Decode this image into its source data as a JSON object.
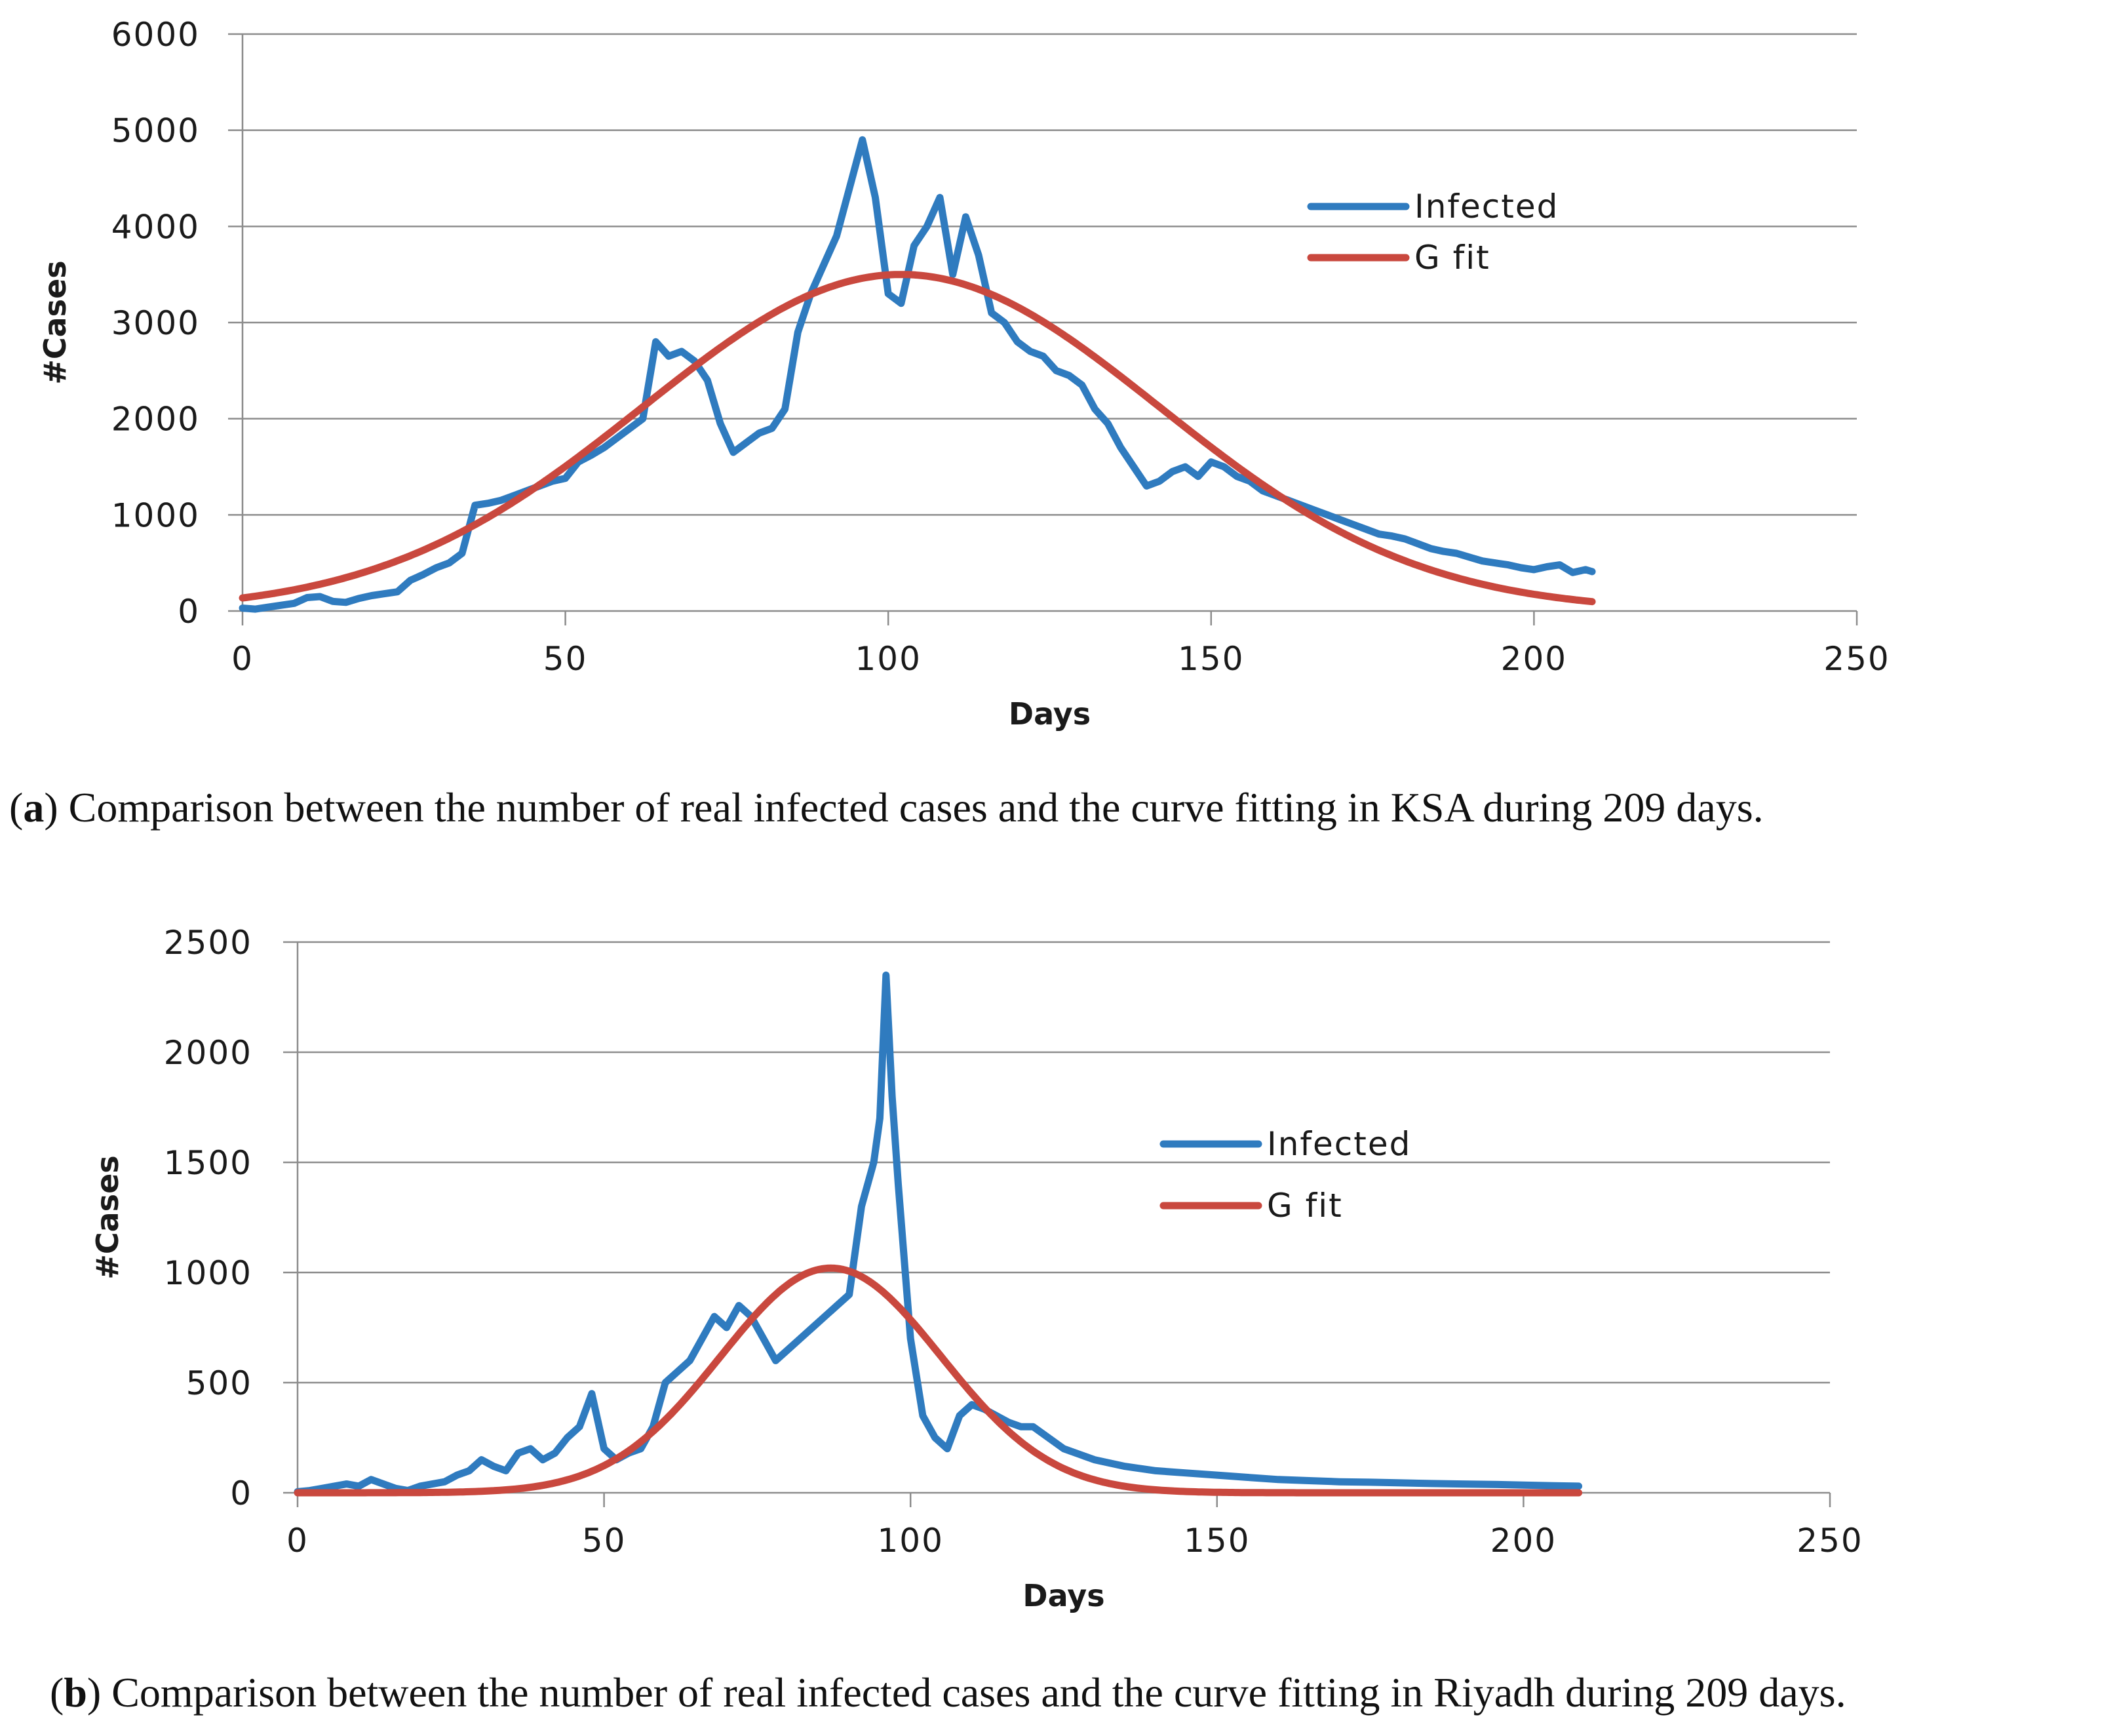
{
  "colors": {
    "infected": "#2f7bbf",
    "gfit": "#c9483e",
    "grid": "#8c8c8c",
    "text": "#1a1a1a"
  },
  "captions": {
    "a_label": "a",
    "a_text": "Comparison between the number of real infected cases and the curve fitting in KSA during 209 days.",
    "b_label": "b",
    "b_text": "Comparison between the number of real infected cases and the curve fitting in Riyadh during 209 days."
  },
  "chart_data": [
    {
      "id": "ksa",
      "type": "line",
      "title": "",
      "xlabel": "Days",
      "ylabel": "#Cases",
      "xlim": [
        0,
        250
      ],
      "ylim": [
        0,
        6000
      ],
      "xticks": [
        0,
        50,
        100,
        150,
        200,
        250
      ],
      "yticks": [
        0,
        1000,
        2000,
        3000,
        4000,
        5000,
        6000
      ],
      "grid": "horizontal",
      "legend_position": "right-upper",
      "series": [
        {
          "name": "Infected",
          "x": [
            0,
            2,
            4,
            6,
            8,
            10,
            12,
            14,
            16,
            18,
            20,
            22,
            24,
            26,
            28,
            30,
            32,
            34,
            35,
            36,
            38,
            40,
            42,
            44,
            46,
            48,
            50,
            52,
            54,
            56,
            58,
            60,
            62,
            64,
            66,
            68,
            70,
            72,
            74,
            76,
            78,
            80,
            82,
            84,
            86,
            88,
            90,
            92,
            94,
            96,
            98,
            100,
            102,
            104,
            106,
            108,
            110,
            112,
            114,
            116,
            118,
            120,
            122,
            124,
            126,
            128,
            130,
            132,
            134,
            136,
            138,
            140,
            142,
            144,
            146,
            148,
            150,
            152,
            154,
            156,
            158,
            160,
            162,
            164,
            166,
            168,
            170,
            172,
            174,
            176,
            178,
            180,
            182,
            184,
            186,
            188,
            190,
            192,
            194,
            196,
            198,
            200,
            202,
            204,
            206,
            208,
            209
          ],
          "values": [
            30,
            20,
            40,
            60,
            80,
            140,
            150,
            100,
            90,
            130,
            160,
            180,
            200,
            320,
            380,
            450,
            500,
            600,
            850,
            1100,
            1120,
            1150,
            1200,
            1250,
            1300,
            1350,
            1380,
            1550,
            1620,
            1700,
            1800,
            1900,
            2000,
            2800,
            2650,
            2700,
            2600,
            2400,
            1950,
            1650,
            1750,
            1850,
            1900,
            2100,
            2900,
            3300,
            3600,
            3900,
            4400,
            4900,
            4300,
            3300,
            3200,
            3800,
            4000,
            4300,
            3500,
            4100,
            3700,
            3100,
            3000,
            2800,
            2700,
            2650,
            2500,
            2450,
            2350,
            2100,
            1950,
            1700,
            1500,
            1300,
            1350,
            1450,
            1500,
            1400,
            1550,
            1500,
            1400,
            1350,
            1250,
            1200,
            1150,
            1100,
            1050,
            1000,
            950,
            900,
            850,
            800,
            780,
            750,
            700,
            650,
            620,
            600,
            560,
            520,
            500,
            480,
            450,
            430,
            460,
            480,
            400,
            430,
            410
          ]
        },
        {
          "name": "G fit",
          "function": "gaussian",
          "amplitude": 3500,
          "mean": 102,
          "sigma": 40,
          "x_range": [
            0,
            209
          ]
        }
      ]
    },
    {
      "id": "riyadh",
      "type": "line",
      "title": "",
      "xlabel": "Days",
      "ylabel": "#Cases",
      "xlim": [
        0,
        250
      ],
      "ylim": [
        0,
        2500
      ],
      "xticks": [
        0,
        50,
        100,
        150,
        200,
        250
      ],
      "yticks": [
        0,
        500,
        1000,
        1500,
        2000,
        2500
      ],
      "grid": "horizontal",
      "legend_position": "right-middle",
      "series": [
        {
          "name": "Infected",
          "x": [
            0,
            2,
            4,
            6,
            8,
            10,
            12,
            14,
            16,
            18,
            20,
            22,
            24,
            26,
            28,
            30,
            32,
            34,
            36,
            38,
            40,
            42,
            44,
            46,
            48,
            50,
            52,
            54,
            56,
            58,
            60,
            62,
            64,
            66,
            68,
            70,
            72,
            74,
            76,
            78,
            80,
            82,
            84,
            86,
            88,
            90,
            92,
            94,
            95,
            96,
            97,
            98,
            100,
            102,
            104,
            106,
            108,
            110,
            112,
            114,
            116,
            118,
            120,
            125,
            130,
            135,
            140,
            145,
            150,
            155,
            160,
            165,
            170,
            175,
            180,
            185,
            190,
            195,
            200,
            205,
            209
          ],
          "values": [
            5,
            10,
            20,
            30,
            40,
            30,
            60,
            40,
            20,
            10,
            30,
            40,
            50,
            80,
            100,
            150,
            120,
            100,
            180,
            200,
            150,
            180,
            250,
            300,
            450,
            200,
            150,
            180,
            200,
            300,
            500,
            550,
            600,
            700,
            800,
            750,
            850,
            800,
            700,
            600,
            650,
            700,
            750,
            800,
            850,
            900,
            1300,
            1500,
            1700,
            2350,
            1800,
            1400,
            700,
            350,
            250,
            200,
            350,
            400,
            380,
            350,
            320,
            300,
            300,
            200,
            150,
            120,
            100,
            90,
            80,
            70,
            60,
            55,
            50,
            48,
            45,
            42,
            40,
            38,
            35,
            32,
            30
          ]
        },
        {
          "name": "G fit",
          "function": "gaussian",
          "amplitude": 1020,
          "mean": 87,
          "sigma": 18,
          "x_range": [
            0,
            209
          ]
        }
      ]
    }
  ]
}
